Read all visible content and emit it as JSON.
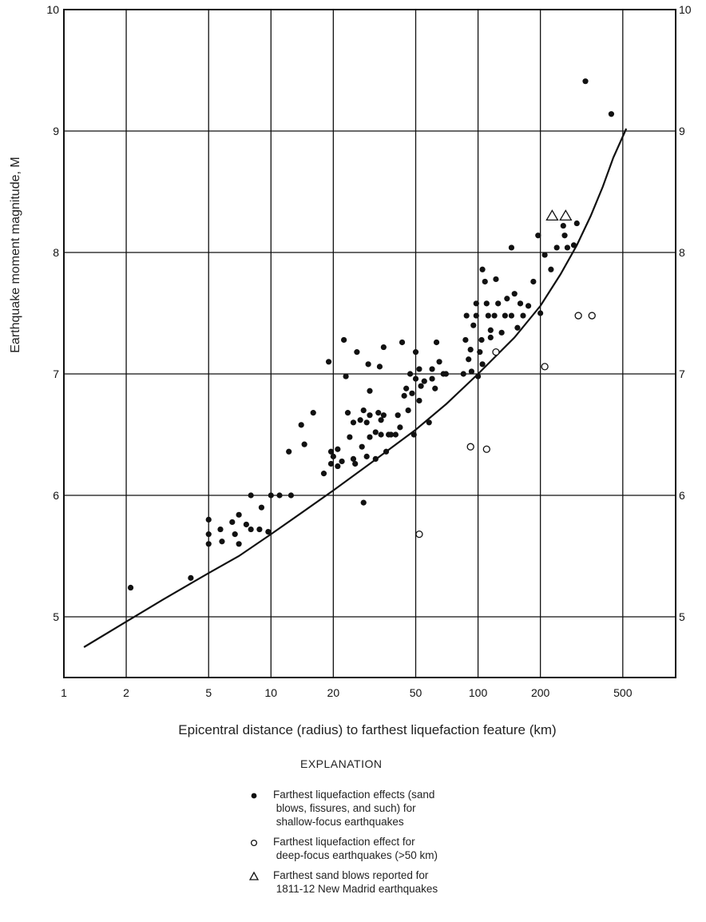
{
  "chart_data": {
    "type": "scatter",
    "xlabel": "Epicentral distance (radius) to farthest liquefaction feature (km)",
    "ylabel": "Earthquake moment magnitude, M",
    "xscale": "log",
    "xlim": [
      1,
      900
    ],
    "ylim": [
      4.5,
      10
    ],
    "x_ticks": [
      1,
      2,
      5,
      10,
      20,
      50,
      100,
      200,
      500
    ],
    "x_tick_labels": [
      "1",
      "2",
      "5",
      "10",
      "20",
      "50",
      "100",
      "200",
      "500"
    ],
    "y_ticks": [
      5,
      6,
      7,
      8,
      9,
      10
    ],
    "y_tick_labels": [
      "5",
      "6",
      "7",
      "8",
      "9",
      "10"
    ],
    "grid": true,
    "series": [
      {
        "marker": "filled-circle",
        "points": [
          [
            2.1,
            5.24
          ],
          [
            4.1,
            5.32
          ],
          [
            5.0,
            5.8
          ],
          [
            5.0,
            5.68
          ],
          [
            5.0,
            5.6
          ],
          [
            5.7,
            5.72
          ],
          [
            5.8,
            5.62
          ],
          [
            6.5,
            5.78
          ],
          [
            6.7,
            5.68
          ],
          [
            7.0,
            5.6
          ],
          [
            7.0,
            5.84
          ],
          [
            7.6,
            5.76
          ],
          [
            8.0,
            6.0
          ],
          [
            8.0,
            5.72
          ],
          [
            8.8,
            5.72
          ],
          [
            9.0,
            5.9
          ],
          [
            9.7,
            5.7
          ],
          [
            10.0,
            6.0
          ],
          [
            11.0,
            6.0
          ],
          [
            12.2,
            6.36
          ],
          [
            12.5,
            6.0
          ],
          [
            14.0,
            6.58
          ],
          [
            14.5,
            6.42
          ],
          [
            16.0,
            6.68
          ],
          [
            18.0,
            6.18
          ],
          [
            19.0,
            7.1
          ],
          [
            19.5,
            6.36
          ],
          [
            19.5,
            6.26
          ],
          [
            20.0,
            6.32
          ],
          [
            21.0,
            6.24
          ],
          [
            21.0,
            6.38
          ],
          [
            22.0,
            6.28
          ],
          [
            22.5,
            7.28
          ],
          [
            23.0,
            6.98
          ],
          [
            23.5,
            6.68
          ],
          [
            24.0,
            6.48
          ],
          [
            25.0,
            6.3
          ],
          [
            25.0,
            6.6
          ],
          [
            25.5,
            6.26
          ],
          [
            26.0,
            7.18
          ],
          [
            27.0,
            6.62
          ],
          [
            27.5,
            6.4
          ],
          [
            28.0,
            6.7
          ],
          [
            28.0,
            5.94
          ],
          [
            29.0,
            6.32
          ],
          [
            29.0,
            6.6
          ],
          [
            29.5,
            7.08
          ],
          [
            30.0,
            6.48
          ],
          [
            30.0,
            6.86
          ],
          [
            30.0,
            6.66
          ],
          [
            32.0,
            6.52
          ],
          [
            32.0,
            6.3
          ],
          [
            33.0,
            6.68
          ],
          [
            33.5,
            7.06
          ],
          [
            34.0,
            6.5
          ],
          [
            34.0,
            6.62
          ],
          [
            35.0,
            6.66
          ],
          [
            35.0,
            7.22
          ],
          [
            36.0,
            6.36
          ],
          [
            37.0,
            6.5
          ],
          [
            38.0,
            6.5
          ],
          [
            40.0,
            6.5
          ],
          [
            41.0,
            6.66
          ],
          [
            42.0,
            6.56
          ],
          [
            43.0,
            7.26
          ],
          [
            44.0,
            6.82
          ],
          [
            45.0,
            6.88
          ],
          [
            46.0,
            6.7
          ],
          [
            47.0,
            7.0
          ],
          [
            48.0,
            6.84
          ],
          [
            49.0,
            6.5
          ],
          [
            50.0,
            7.18
          ],
          [
            50.0,
            6.96
          ],
          [
            52.0,
            6.78
          ],
          [
            52.0,
            7.04
          ],
          [
            53.0,
            6.9
          ],
          [
            55.0,
            6.94
          ],
          [
            58.0,
            6.6
          ],
          [
            60.0,
            7.04
          ],
          [
            60.0,
            6.96
          ],
          [
            62.0,
            6.88
          ],
          [
            63.0,
            7.26
          ],
          [
            65.0,
            7.1
          ],
          [
            68.0,
            7.0
          ],
          [
            70.0,
            7.0
          ],
          [
            85.0,
            7.0
          ],
          [
            87.0,
            7.28
          ],
          [
            88.0,
            7.48
          ],
          [
            90.0,
            7.12
          ],
          [
            92.0,
            7.2
          ],
          [
            93.0,
            7.02
          ],
          [
            95.0,
            7.4
          ],
          [
            98.0,
            7.58
          ],
          [
            98.0,
            7.48
          ],
          [
            100.0,
            6.98
          ],
          [
            102.0,
            7.18
          ],
          [
            104.0,
            7.28
          ],
          [
            105.0,
            7.08
          ],
          [
            105.0,
            7.86
          ],
          [
            108.0,
            7.76
          ],
          [
            110.0,
            7.58
          ],
          [
            112.0,
            7.48
          ],
          [
            115.0,
            7.36
          ],
          [
            115.0,
            7.3
          ],
          [
            120.0,
            7.48
          ],
          [
            122.0,
            7.78
          ],
          [
            125.0,
            7.58
          ],
          [
            130.0,
            7.34
          ],
          [
            135.0,
            7.48
          ],
          [
            138.0,
            7.62
          ],
          [
            145.0,
            8.04
          ],
          [
            145.0,
            7.48
          ],
          [
            150.0,
            7.66
          ],
          [
            155.0,
            7.38
          ],
          [
            160.0,
            7.58
          ],
          [
            165.0,
            7.48
          ],
          [
            175.0,
            7.56
          ],
          [
            185.0,
            7.76
          ],
          [
            195.0,
            8.14
          ],
          [
            200.0,
            7.5
          ],
          [
            210.0,
            7.98
          ],
          [
            225.0,
            7.86
          ],
          [
            240.0,
            8.04
          ],
          [
            258.0,
            8.22
          ],
          [
            262.0,
            8.14
          ],
          [
            270.0,
            8.04
          ],
          [
            290.0,
            8.06
          ],
          [
            300.0,
            8.24
          ],
          [
            330.0,
            9.41
          ],
          [
            440.0,
            9.14
          ]
        ]
      },
      {
        "marker": "open-circle",
        "points": [
          [
            52.0,
            5.68
          ],
          [
            92.0,
            6.4
          ],
          [
            110.0,
            6.38
          ],
          [
            122.0,
            7.18
          ],
          [
            210.0,
            7.06
          ],
          [
            305.0,
            7.48
          ],
          [
            355.0,
            7.48
          ]
        ]
      },
      {
        "marker": "open-triangle",
        "points": [
          [
            228.0,
            8.3
          ],
          [
            265.0,
            8.3
          ]
        ]
      },
      {
        "type": "line",
        "points": [
          [
            1.25,
            4.75
          ],
          [
            2.0,
            4.96
          ],
          [
            3.0,
            5.14
          ],
          [
            5.0,
            5.36
          ],
          [
            7.0,
            5.5
          ],
          [
            10.0,
            5.68
          ],
          [
            15.0,
            5.89
          ],
          [
            20.0,
            6.04
          ],
          [
            30.0,
            6.26
          ],
          [
            50.0,
            6.54
          ],
          [
            70.0,
            6.75
          ],
          [
            100.0,
            7.0
          ],
          [
            150.0,
            7.3
          ],
          [
            200.0,
            7.56
          ],
          [
            250.0,
            7.82
          ],
          [
            300.0,
            8.06
          ],
          [
            350.0,
            8.3
          ],
          [
            400.0,
            8.54
          ],
          [
            450.0,
            8.78
          ],
          [
            520.0,
            9.02
          ]
        ]
      }
    ]
  },
  "legend": {
    "title": "EXPLANATION",
    "items": [
      {
        "symbol": "filled-circle",
        "text": "Farthest liquefaction effects (sand\n blows, fissures, and such) for\n shallow-focus earthquakes"
      },
      {
        "symbol": "open-circle",
        "text": "Farthest liquefaction effect for\n deep-focus earthquakes (>50 km)"
      },
      {
        "symbol": "open-triangle",
        "text": "Farthest sand blows reported for\n 1811-12 New Madrid earthquakes"
      }
    ]
  }
}
